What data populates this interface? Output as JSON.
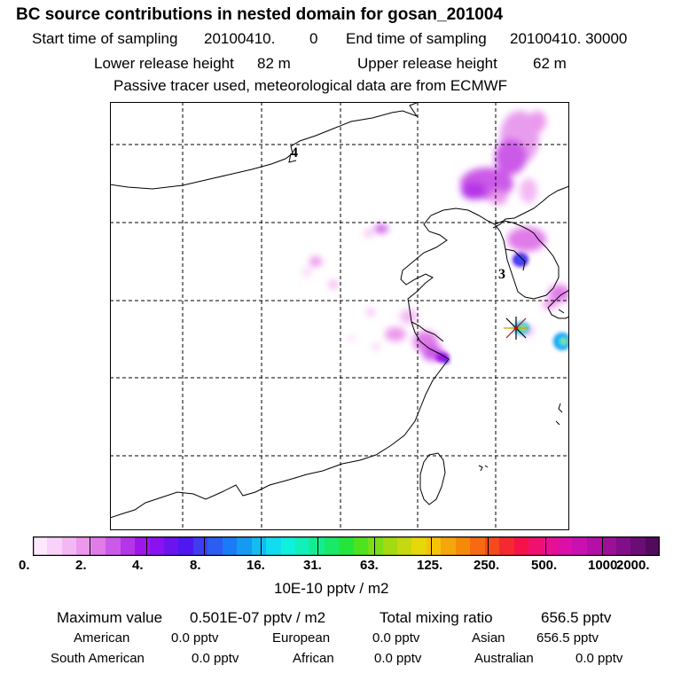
{
  "header": {
    "title": "BC  source contributions in nested domain for gosan_201004",
    "start_label": "Start time of sampling",
    "start_value": "20100410.",
    "start_time": "0",
    "end_label": "End time of sampling",
    "end_value": "20100410. 30000",
    "lower_label": "Lower release height",
    "lower_value": "82 m",
    "upper_label": "Upper release height",
    "upper_value": "62 m",
    "note": "Passive tracer used, meteorological data are from ECMWF"
  },
  "map": {
    "labels": [
      "4",
      "3"
    ],
    "station_marker": "star-marker"
  },
  "colorbar": {
    "colors": [
      "#fde8fd",
      "#f9d2f9",
      "#f3b8f3",
      "#ec98ec",
      "#e07be8",
      "#cc5ae8",
      "#b535e8",
      "#9e17e8",
      "#8a12f0",
      "#6c14f0",
      "#4f18f0",
      "#3f3df0",
      "#2c5cf2",
      "#1a7cf4",
      "#159af2",
      "#13bcf0",
      "#10ddee",
      "#0ff0dd",
      "#12efb8",
      "#14ec90",
      "#17e968",
      "#24e53c",
      "#4ee21e",
      "#7ade18",
      "#a4da12",
      "#c6d80f",
      "#e6d80b",
      "#f5c20a",
      "#f5a60a",
      "#f58a0a",
      "#f56a12",
      "#f54a1c",
      "#f52a30",
      "#f5124a",
      "#f01070",
      "#e81092",
      "#dc10a8",
      "#ca10b0",
      "#b410a8",
      "#9c1098",
      "#820f88",
      "#6a0d74",
      "#520a5e"
    ],
    "ticks": [
      "0.",
      "2.",
      "4.",
      "8.",
      "16.",
      "31.",
      "63.",
      "125.",
      "250.",
      "500.",
      "1000.",
      "2000."
    ],
    "units": "10E-10 pptv / m2"
  },
  "summary": {
    "max_label": "Maximum value",
    "max_value": "0.501E-07 pptv / m2",
    "total_label": "Total mixing ratio",
    "total_value": "656.5 pptv",
    "regions": [
      {
        "name": "American",
        "value": "0.0 pptv"
      },
      {
        "name": "European",
        "value": "0.0 pptv"
      },
      {
        "name": "Asian",
        "value": "656.5 pptv"
      },
      {
        "name": "South American",
        "value": "0.0 pptv"
      },
      {
        "name": "African",
        "value": "0.0 pptv"
      },
      {
        "name": "Australian",
        "value": "0.0 pptv"
      }
    ]
  }
}
